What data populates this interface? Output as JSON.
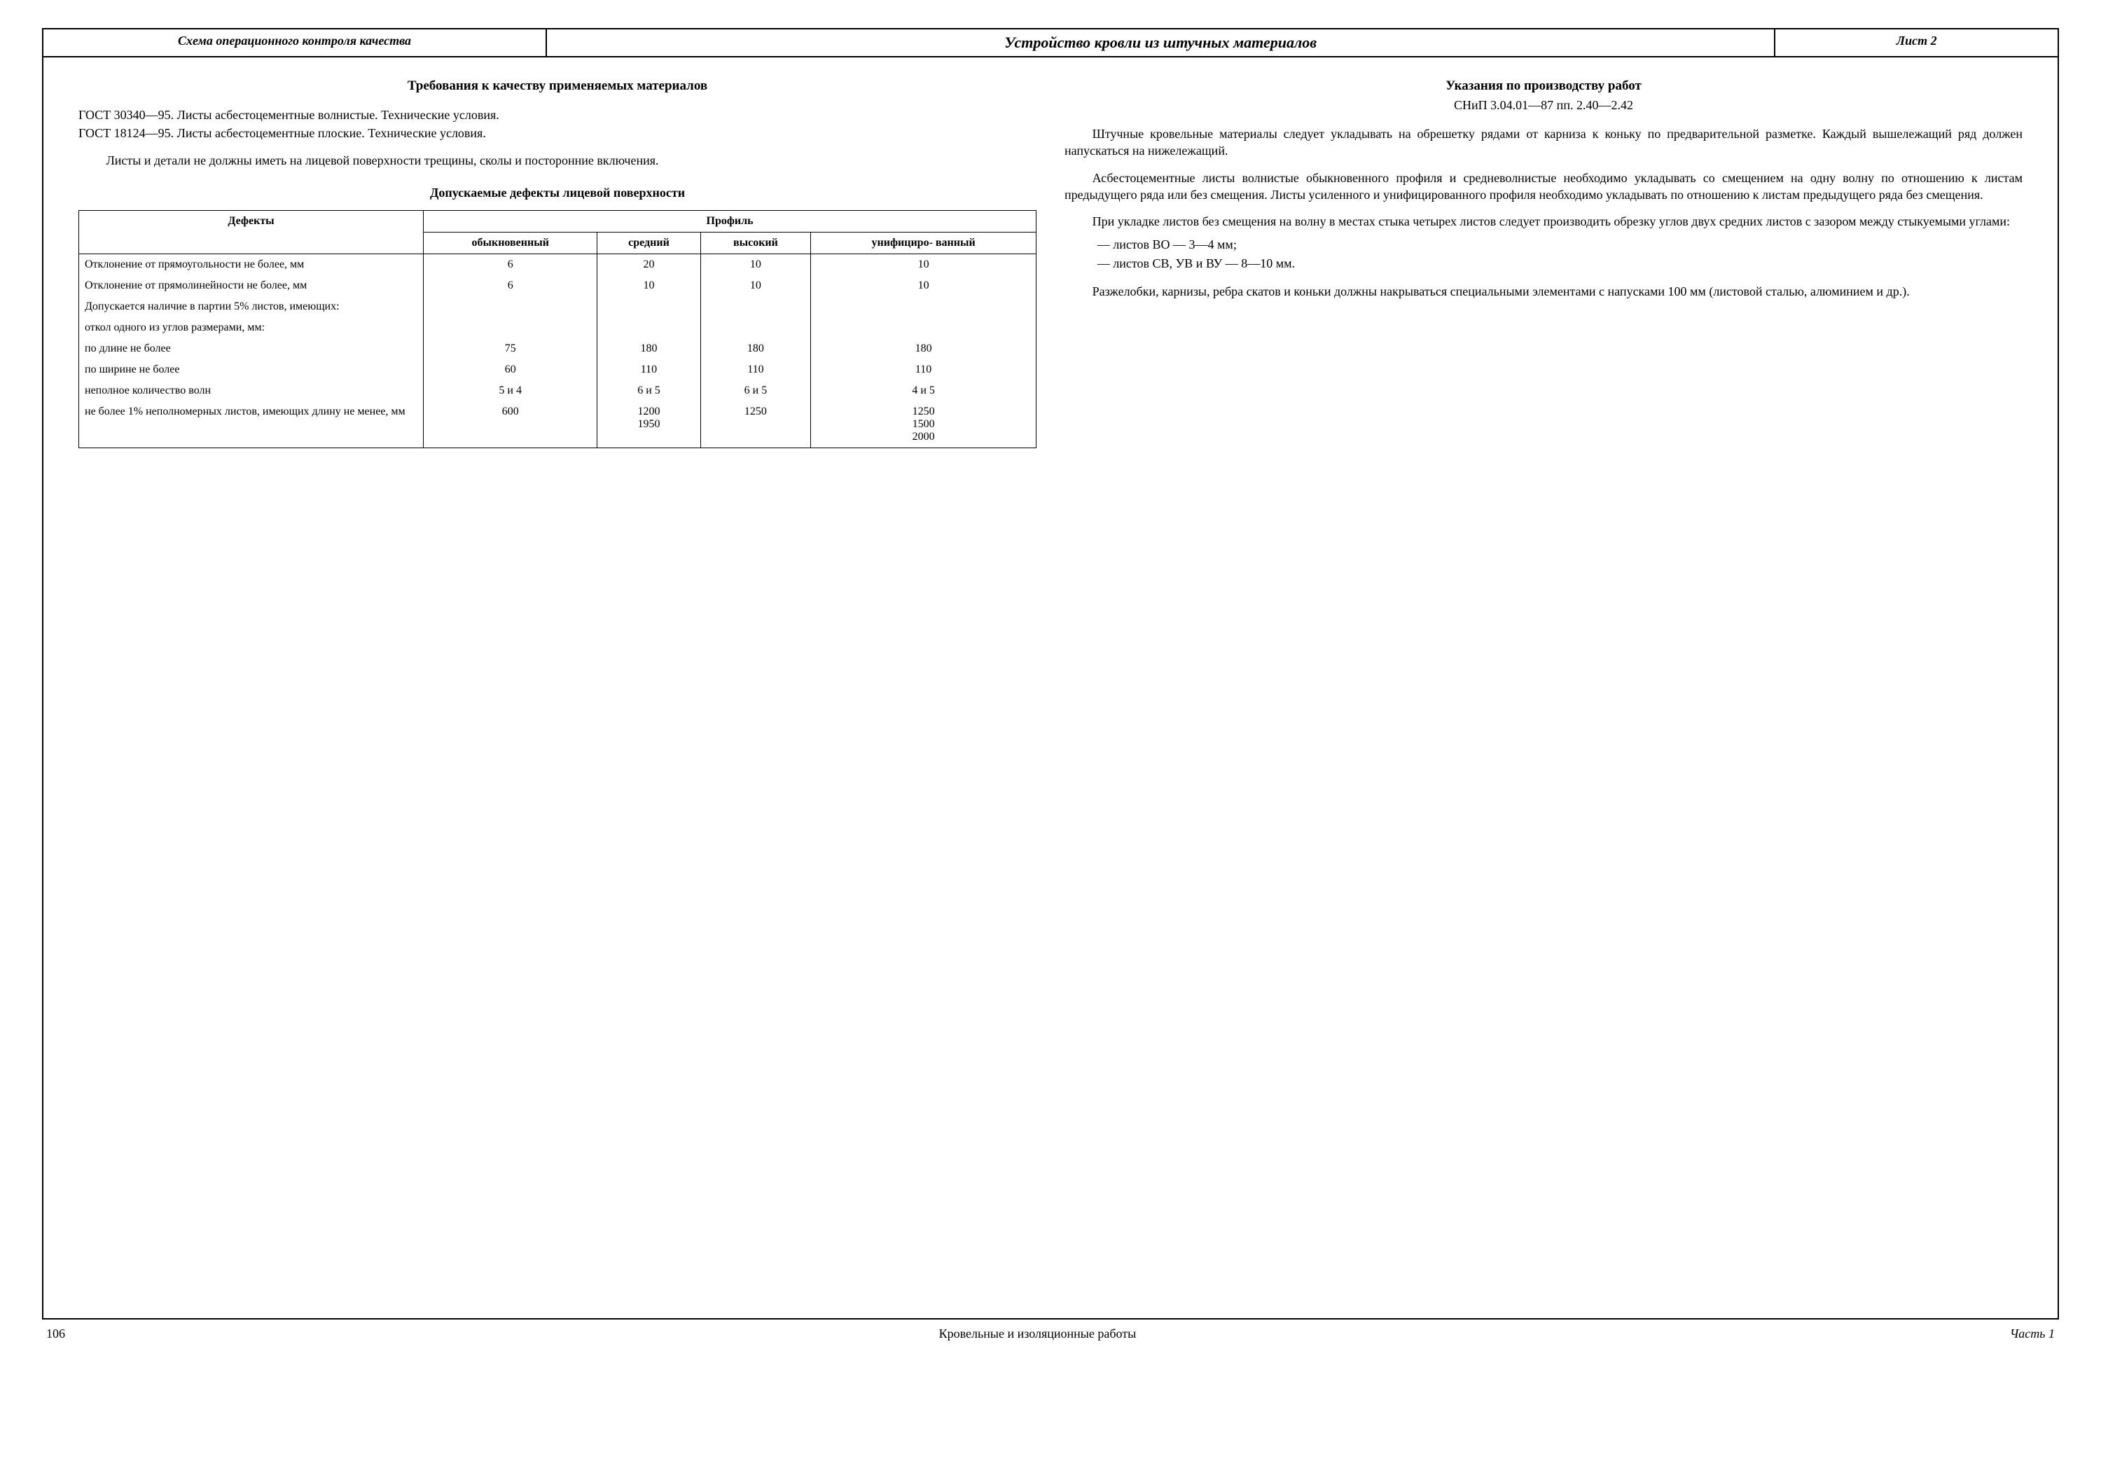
{
  "titlebar": {
    "left": "Схема операционного контроля качества",
    "center": "Устройство кровли из штучных материалов",
    "right": "Лист 2"
  },
  "left": {
    "heading": "Требования к качеству применяемых материалов",
    "gost1": "ГОСТ 30340—95. Листы асбестоцементные волнистые. Технические условия.",
    "gost2": "ГОСТ 18124—95. Листы асбестоцементные плоские. Технические условия.",
    "para1": "Листы и детали не должны иметь на лицевой поверхности трещины, сколы и посторонние включения.",
    "table_caption": "Допускаемые дефекты лицевой поверхности",
    "table": {
      "col_defects": "Дефекты",
      "col_profile": "Профиль",
      "cols": [
        "обыкновенный",
        "средний",
        "высокий",
        "унифициро-\nванный"
      ],
      "rows": [
        {
          "label": "Отклонение от прямоугольности не более, мм",
          "indent": 0,
          "vals": [
            "6",
            "20",
            "10",
            "10"
          ]
        },
        {
          "label": "Отклонение от прямолинейности не более, мм",
          "indent": 0,
          "vals": [
            "6",
            "10",
            "10",
            "10"
          ]
        },
        {
          "label": "Допускается наличие в партии 5% листов, имеющих:",
          "indent": 0,
          "vals": [
            "",
            "",
            "",
            ""
          ]
        },
        {
          "label": "откол одного из углов размерами, мм:",
          "indent": 1,
          "vals": [
            "",
            "",
            "",
            ""
          ]
        },
        {
          "label": "по длине не более",
          "indent": 2,
          "vals": [
            "75",
            "180",
            "180",
            "180"
          ]
        },
        {
          "label": "по ширине не более",
          "indent": 2,
          "vals": [
            "60",
            "110",
            "110",
            "110"
          ]
        },
        {
          "label": "неполное количество волн",
          "indent": 1,
          "vals": [
            "5 и 4",
            "6 и 5",
            "6 и 5",
            "4 и 5"
          ]
        },
        {
          "label": "не более 1% неполномерных листов, имеющих длину не менее, мм",
          "indent": 1,
          "vals": [
            "600",
            "1200\n1950",
            "1250",
            "1250\n1500\n2000"
          ]
        }
      ]
    }
  },
  "right": {
    "heading": "Указания по производству работ",
    "subref": "СНиП 3.04.01—87 пп. 2.40—2.42",
    "p1": "Штучные кровельные материалы следует укладывать на обрешетку рядами от карниза к коньку по предварительной разметке. Каждый вышележащий ряд должен напускаться на нижележащий.",
    "p2": "Асбестоцементные листы волнистые обыкновенного профиля и средневолнистые необходимо укладывать со смещением на одну волну по отношению к листам предыдущего ряда или без смещения. Листы усиленного и унифицированного профиля необходимо укладывать по отношению к листам предыдущего ряда без смещения.",
    "p3": "При укладке листов без смещения на волну в местах стыка четырех листов следует производить обрезку углов двух средних листов с зазором между стыкуемыми углами:",
    "b1": "— листов ВО — 3—4 мм;",
    "b2": "— листов СВ, УВ и ВУ — 8—10 мм.",
    "p4": "Разжелобки, карнизы, ребра скатов и коньки должны накрываться специальными элементами с напусками 100 мм (листовой сталью, алюминием и др.)."
  },
  "footer": {
    "page": "106",
    "center": "Кровельные и изоляционные работы",
    "right": "Часть 1"
  }
}
